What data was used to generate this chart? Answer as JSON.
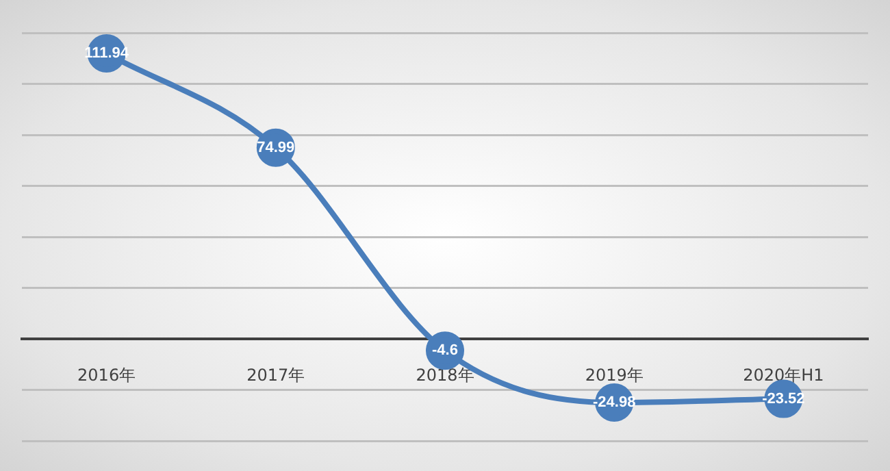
{
  "chart_data": {
    "type": "line",
    "categories": [
      "2016年",
      "2017年",
      "2018年",
      "2019年",
      "2020年H1"
    ],
    "series": [
      {
        "color": "#4a7ebb",
        "values": [
          111.94,
          74.99,
          -4.6,
          -24.98,
          -23.52
        ]
      }
    ],
    "ylim": [
      -40,
      120
    ],
    "yticks": [
      {
        "value": -40,
        "label": null
      },
      {
        "value": -20,
        "label": null
      },
      {
        "value": 0,
        "label": null
      },
      {
        "value": 20,
        "label": null
      },
      {
        "value": 40,
        "label": null
      },
      {
        "value": 60,
        "label": null
      },
      {
        "value": 80,
        "label": null
      },
      {
        "value": 100,
        "label": null
      },
      {
        "value": 120,
        "label": null
      }
    ],
    "grid": "y",
    "tick_labels": "x",
    "data_labels": true,
    "marker": "circle"
  }
}
